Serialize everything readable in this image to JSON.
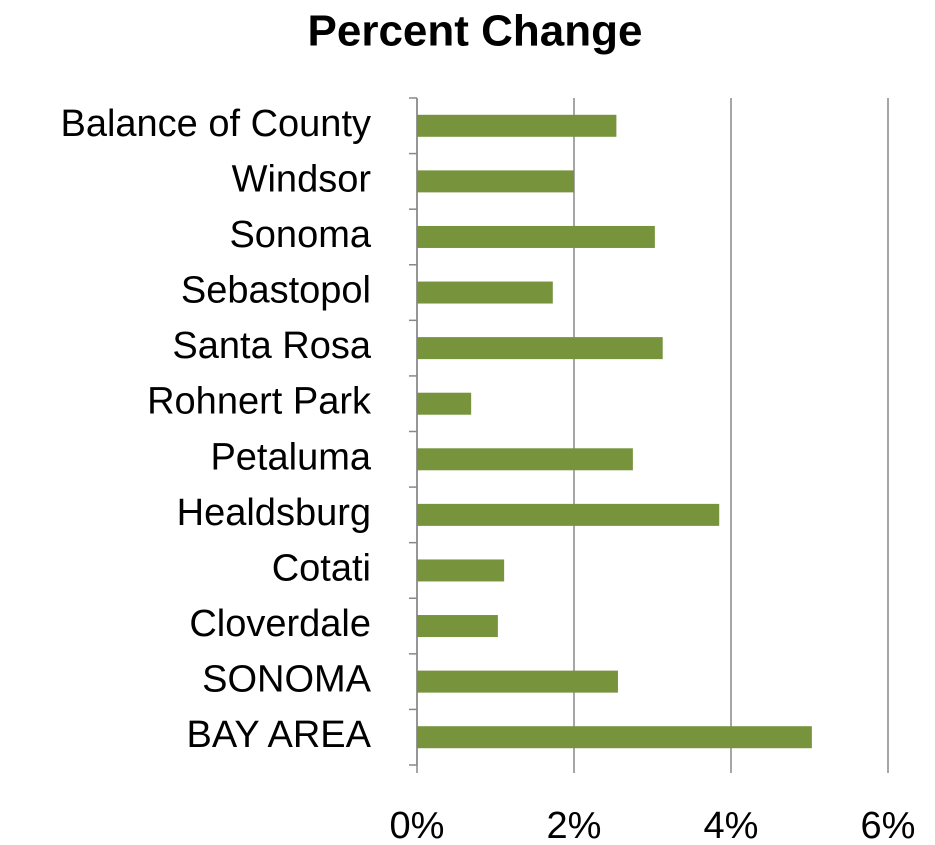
{
  "chart_data": {
    "type": "bar",
    "orientation": "horizontal",
    "title": "Percent Change",
    "categories": [
      "Balance of County",
      "Windsor",
      "Sonoma",
      "Sebastopol",
      "Santa Rosa",
      "Rohnert Park",
      "Petaluma",
      "Healdsburg",
      "Cotati",
      "Cloverdale",
      "SONOMA",
      "BAY AREA"
    ],
    "values": [
      2.54,
      2.0,
      3.03,
      1.73,
      3.13,
      0.69,
      2.75,
      3.85,
      1.11,
      1.03,
      2.56,
      5.03
    ],
    "color": "#77933c",
    "xlim": [
      0,
      6
    ],
    "xticks": [
      {
        "value": 0,
        "label": "0%"
      },
      {
        "value": 2,
        "label": "2%"
      },
      {
        "value": 4,
        "label": "4%"
      },
      {
        "value": 6,
        "label": "6%"
      }
    ],
    "grid": true
  }
}
